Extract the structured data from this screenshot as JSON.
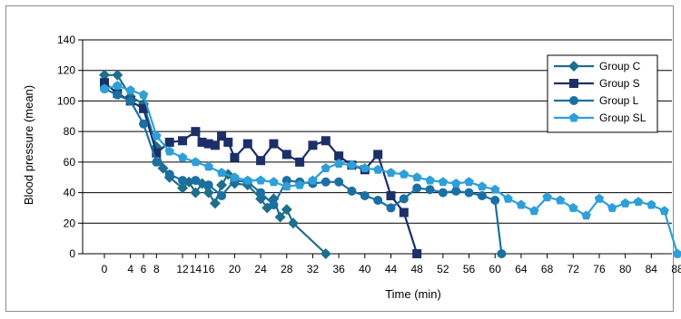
{
  "chart_data": {
    "type": "line",
    "title": "",
    "xlabel": "Time (min)",
    "ylabel": "Blood pressure (mean)",
    "xlim": [
      0,
      88
    ],
    "ylim": [
      0,
      140
    ],
    "x_ticks": [
      0,
      4,
      6,
      8,
      12,
      14,
      16,
      20,
      24,
      28,
      32,
      36,
      40,
      44,
      48,
      52,
      56,
      60,
      64,
      68,
      72,
      76,
      80,
      84,
      88
    ],
    "x_tick_labels": [
      "0",
      "4",
      "6",
      "8",
      "12",
      "14",
      "16",
      "20",
      "24",
      "28",
      "32",
      "36",
      "40",
      "44",
      "48",
      "52",
      "56",
      "60",
      "64",
      "68",
      "72",
      "76",
      "80",
      "84",
      "88"
    ],
    "y_ticks": [
      0,
      20,
      40,
      60,
      80,
      100,
      120,
      140
    ],
    "y_tick_labels": [
      "0",
      "20",
      "40",
      "60",
      "80",
      "100",
      "120",
      "140"
    ],
    "grid": "horizontal",
    "legend_position": "top-right",
    "series": [
      {
        "name": "Group C",
        "color": "#1f6e8c",
        "marker": "diamond",
        "points": [
          [
            0,
            117
          ],
          [
            2,
            117
          ],
          [
            4,
            103
          ],
          [
            6,
            98
          ],
          [
            8,
            70
          ],
          [
            9,
            56
          ],
          [
            10,
            50
          ],
          [
            12,
            43
          ],
          [
            13,
            47
          ],
          [
            14,
            40
          ],
          [
            15,
            46
          ],
          [
            16,
            40
          ],
          [
            17,
            33
          ],
          [
            18,
            45
          ],
          [
            19,
            52
          ],
          [
            20,
            46
          ],
          [
            22,
            45
          ],
          [
            24,
            36
          ],
          [
            25,
            30
          ],
          [
            26,
            36
          ],
          [
            27,
            24
          ],
          [
            28,
            29
          ],
          [
            29,
            20
          ],
          [
            34,
            0
          ]
        ]
      },
      {
        "name": "Group S",
        "color": "#1c2f68",
        "marker": "square",
        "points": [
          [
            0,
            112
          ],
          [
            2,
            105
          ],
          [
            4,
            100
          ],
          [
            6,
            95
          ],
          [
            8,
            66
          ],
          [
            10,
            73
          ],
          [
            12,
            74
          ],
          [
            14,
            80
          ],
          [
            15,
            73
          ],
          [
            16,
            72
          ],
          [
            17,
            71
          ],
          [
            18,
            77
          ],
          [
            19,
            73
          ],
          [
            20,
            63
          ],
          [
            22,
            72
          ],
          [
            24,
            61
          ],
          [
            26,
            72
          ],
          [
            28,
            65
          ],
          [
            30,
            60
          ],
          [
            32,
            71
          ],
          [
            34,
            74
          ],
          [
            36,
            64
          ],
          [
            38,
            58
          ],
          [
            40,
            55
          ],
          [
            42,
            65
          ],
          [
            44,
            38
          ],
          [
            46,
            27
          ],
          [
            48,
            0
          ]
        ]
      },
      {
        "name": "Group L",
        "color": "#1a6fa3",
        "marker": "circle",
        "points": [
          [
            0,
            108
          ],
          [
            2,
            104
          ],
          [
            4,
            100
          ],
          [
            6,
            85
          ],
          [
            8,
            60
          ],
          [
            10,
            52
          ],
          [
            12,
            48
          ],
          [
            14,
            48
          ],
          [
            16,
            45
          ],
          [
            18,
            38
          ],
          [
            20,
            48
          ],
          [
            22,
            47
          ],
          [
            24,
            40
          ],
          [
            26,
            32
          ],
          [
            28,
            48
          ],
          [
            30,
            47
          ],
          [
            32,
            46
          ],
          [
            34,
            47
          ],
          [
            36,
            47
          ],
          [
            38,
            41
          ],
          [
            40,
            38
          ],
          [
            42,
            35
          ],
          [
            44,
            30
          ],
          [
            46,
            36
          ],
          [
            48,
            43
          ],
          [
            50,
            42
          ],
          [
            52,
            40
          ],
          [
            54,
            41
          ],
          [
            56,
            40
          ],
          [
            58,
            38
          ],
          [
            60,
            35
          ],
          [
            61,
            0
          ]
        ]
      },
      {
        "name": "Group SL",
        "color": "#2e9fd8",
        "marker": "pentagon",
        "points": [
          [
            0,
            108
          ],
          [
            2,
            110
          ],
          [
            4,
            107
          ],
          [
            6,
            104
          ],
          [
            8,
            77
          ],
          [
            10,
            67
          ],
          [
            12,
            63
          ],
          [
            14,
            60
          ],
          [
            16,
            57
          ],
          [
            18,
            53
          ],
          [
            20,
            50
          ],
          [
            22,
            48
          ],
          [
            24,
            48
          ],
          [
            26,
            47
          ],
          [
            28,
            44
          ],
          [
            30,
            45
          ],
          [
            32,
            48
          ],
          [
            34,
            56
          ],
          [
            36,
            59
          ],
          [
            38,
            58
          ],
          [
            40,
            56
          ],
          [
            42,
            55
          ],
          [
            44,
            53
          ],
          [
            46,
            52
          ],
          [
            48,
            50
          ],
          [
            50,
            48
          ],
          [
            52,
            47
          ],
          [
            54,
            46
          ],
          [
            56,
            47
          ],
          [
            58,
            44
          ],
          [
            60,
            42
          ],
          [
            62,
            36
          ],
          [
            64,
            32
          ],
          [
            66,
            28
          ],
          [
            68,
            37
          ],
          [
            70,
            35
          ],
          [
            72,
            30
          ],
          [
            74,
            25
          ],
          [
            76,
            36
          ],
          [
            78,
            30
          ],
          [
            80,
            33
          ],
          [
            82,
            34
          ],
          [
            84,
            32
          ],
          [
            86,
            28
          ],
          [
            88,
            0
          ]
        ]
      }
    ]
  }
}
